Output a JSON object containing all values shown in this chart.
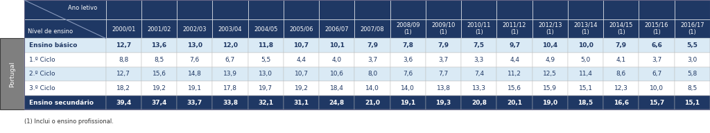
{
  "header_years": [
    "2000/01",
    "2001/02",
    "2002/03",
    "2003/04",
    "2004/05",
    "2005/06",
    "2006/07",
    "2007/08",
    "2008/09\n(1)",
    "2009/10\n(1)",
    "2010/11\n(1)",
    "2011/12\n(1)",
    "2012/13\n(1)",
    "2013/14\n(1)",
    "2014/15\n(1)",
    "2015/16\n(1)",
    "2016/17\n(1)"
  ],
  "col_header_label1": "Ano letivo",
  "col_header_label2": "Nível de ensino",
  "row_label_outer": "Portugal",
  "rows": [
    {
      "label": "Ensino básico",
      "values": [
        "12,7",
        "13,6",
        "13,0",
        "12,0",
        "11,8",
        "10,7",
        "10,1",
        "7,9",
        "7,8",
        "7,9",
        "7,5",
        "9,7",
        "10,4",
        "10,0",
        "7,9",
        "6,6",
        "5,5"
      ],
      "bold": true,
      "style": "bold_light"
    },
    {
      "label": "1.º Ciclo",
      "values": [
        "8,8",
        "8,5",
        "7,6",
        "6,7",
        "5,5",
        "4,4",
        "4,0",
        "3,7",
        "3,6",
        "3,7",
        "3,3",
        "4,4",
        "4,9",
        "5,0",
        "4,1",
        "3,7",
        "3,0"
      ],
      "bold": false,
      "style": "normal_white"
    },
    {
      "label": "2.º Ciclo",
      "values": [
        "12,7",
        "15,6",
        "14,8",
        "13,9",
        "13,0",
        "10,7",
        "10,6",
        "8,0",
        "7,6",
        "7,7",
        "7,4",
        "11,2",
        "12,5",
        "11,4",
        "8,6",
        "6,7",
        "5,8"
      ],
      "bold": false,
      "style": "normal_light"
    },
    {
      "label": "3.º Ciclo",
      "values": [
        "18,2",
        "19,2",
        "19,1",
        "17,8",
        "19,7",
        "19,2",
        "18,4",
        "14,0",
        "14,0",
        "13,8",
        "13,3",
        "15,6",
        "15,9",
        "15,1",
        "12,3",
        "10,0",
        "8,5"
      ],
      "bold": false,
      "style": "normal_white"
    },
    {
      "label": "Ensino secundário",
      "values": [
        "39,4",
        "37,4",
        "33,7",
        "33,8",
        "32,1",
        "31,1",
        "24,8",
        "21,0",
        "19,1",
        "19,3",
        "20,8",
        "20,1",
        "19,0",
        "18,5",
        "16,6",
        "15,7",
        "15,1"
      ],
      "bold": true,
      "style": "bold_dark"
    }
  ],
  "footnote": "(1) Inclui o ensino profissional.",
  "color_header_dark": "#1F3864",
  "color_row_light": "#DAEAF5",
  "color_row_white": "#FFFFFF",
  "color_row_dark_blue": "#1F3864",
  "color_side_label": "#7F7F7F",
  "color_side_border": "#3D3D3D",
  "color_text_white": "#FFFFFF",
  "color_text_dark": "#1F3864",
  "color_border_inner": "#BBBBBB",
  "color_border_header": "#FFFFFF",
  "footnote_fontsize": 6.0,
  "data_fontsize": 6.5,
  "header_fontsize": 6.0,
  "label_fontsize": 6.5
}
